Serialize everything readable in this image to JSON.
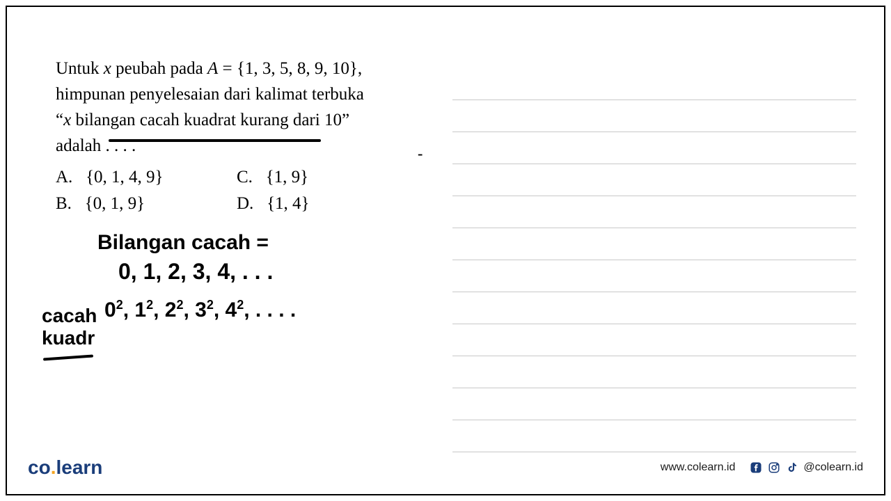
{
  "question": {
    "line1_prefix": "Untuk ",
    "line1_var": "x",
    "line1_mid": " peubah pada ",
    "line1_setvar": "A",
    "line1_eq": " = {1, 3, 5, 8, 9, 10},",
    "line2": "himpunan penyelesaian dari kalimat terbuka",
    "line3_open": "“",
    "line3_var": "x",
    "line3_rest": " bilangan cacah kuadrat kurang dari 10”",
    "line4": "adalah . . . ."
  },
  "options": {
    "A": {
      "letter": "A.",
      "value": "{0, 1, 4, 9}"
    },
    "B": {
      "letter": "B.",
      "value": "{0, 1, 9}"
    },
    "C": {
      "letter": "C.",
      "value": "{1, 9}"
    },
    "D": {
      "letter": "D.",
      "value": "{1, 4}"
    }
  },
  "handwriting": {
    "line1": "Bilangan cacah  =",
    "line2": "0, 1, 2, 3, 4, . .  .",
    "line3_html": "0<span class='sup'>2</span>, 1<span class='sup'>2</span>, 2<span class='sup'>2</span>, 3<span class='sup'>2</span>, 4<span class='sup'>2</span>, . . . .",
    "label1": "cacah",
    "label2": "kuadr"
  },
  "ruled": {
    "count": 12,
    "line_color": "#c8c8c8"
  },
  "footer": {
    "logo_co": "co",
    "logo_dot": ".",
    "logo_learn": "learn",
    "url": "www.colearn.id",
    "handle": "@colearn.id"
  },
  "colors": {
    "text": "#000000",
    "logo_blue": "#1a3d7a",
    "logo_orange": "#f5a623",
    "rule": "#c8c8c8",
    "background": "#ffffff"
  }
}
